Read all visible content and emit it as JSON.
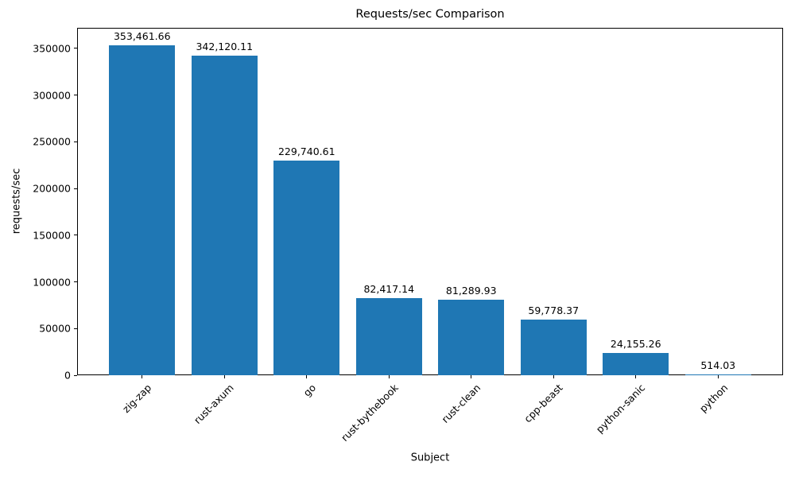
{
  "chart_data": {
    "type": "bar",
    "title": "Requests/sec Comparison",
    "xlabel": "Subject",
    "ylabel": "requests/sec",
    "categories": [
      "zig-zap",
      "rust-axum",
      "go",
      "rust-bythebook",
      "rust-clean",
      "cpp-beast",
      "python-sanic",
      "python"
    ],
    "values": [
      353461.66,
      342120.11,
      229740.61,
      82417.14,
      81289.93,
      59778.37,
      24155.26,
      514.03
    ],
    "value_labels": [
      "353,461.66",
      "342,120.11",
      "229,740.61",
      "82,417.14",
      "81,289.93",
      "59,778.37",
      "24,155.26",
      "514.03"
    ],
    "yticks": [
      0,
      50000,
      100000,
      150000,
      200000,
      250000,
      300000,
      350000
    ],
    "ytick_labels": [
      "0",
      "50000",
      "100000",
      "150000",
      "200000",
      "250000",
      "300000",
      "350000"
    ],
    "ylim": [
      0,
      372000
    ],
    "grid": false,
    "legend_position": "none",
    "bar_color": "#1f77b4",
    "axis_color": "#000000"
  }
}
